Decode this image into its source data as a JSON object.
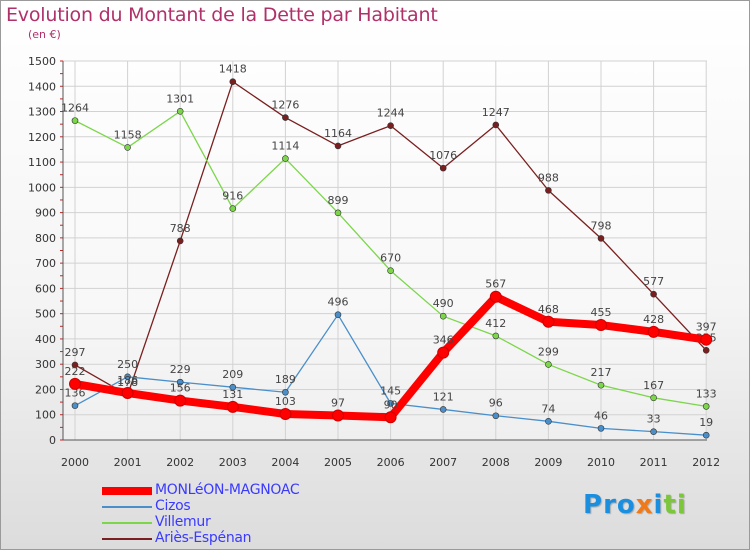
{
  "header": {
    "title": "Evolution du Montant de la Dette par Habitant",
    "subtitle": "(en €)"
  },
  "chart_data": {
    "type": "line",
    "title": "Evolution du Montant de la Dette par Habitant",
    "subtitle": "(en €)",
    "xlabel": "",
    "ylabel": "",
    "x": [
      "2000",
      "2001",
      "2002",
      "2003",
      "2004",
      "2005",
      "2006",
      "2007",
      "2008",
      "2009",
      "2010",
      "2011",
      "2012"
    ],
    "ylim": [
      0,
      1500
    ],
    "yticks": [
      0,
      100,
      200,
      300,
      400,
      500,
      600,
      700,
      800,
      900,
      1000,
      1100,
      1200,
      1300,
      1400,
      1500
    ],
    "grid": true,
    "legend_position": "bottom-left",
    "series": [
      {
        "name": "Ariès-Espénan",
        "color": "#7a1f1f",
        "values": [
          297,
          178,
          788,
          1418,
          1276,
          1164,
          1244,
          1076,
          1247,
          988,
          798,
          577,
          355
        ]
      },
      {
        "name": "Villemur",
        "color": "#7cd64a",
        "values": [
          1264,
          1158,
          1301,
          916,
          1114,
          899,
          670,
          490,
          412,
          299,
          217,
          167,
          133
        ]
      },
      {
        "name": "Cizos",
        "color": "#4a8fc9",
        "values": [
          136,
          250,
          229,
          209,
          189,
          496,
          145,
          121,
          96,
          74,
          46,
          33,
          19
        ]
      },
      {
        "name": "MONLéON-MAGNOAC",
        "color": "#ff0000",
        "values": [
          222,
          186,
          156,
          131,
          103,
          97,
          90,
          346,
          567,
          468,
          455,
          428,
          397
        ]
      }
    ]
  },
  "legend": [
    {
      "label": "MONLéON-MAGNOAC",
      "color": "#ff0000",
      "thickness": 8
    },
    {
      "label": "Cizos",
      "color": "#4a8fc9",
      "thickness": 2
    },
    {
      "label": "Villemur",
      "color": "#7cd64a",
      "thickness": 2
    },
    {
      "label": "Ariès-Espénan",
      "color": "#7a1f1f",
      "thickness": 2
    }
  ],
  "logo": {
    "letters": [
      {
        "ch": "P",
        "color": "#1a8fe0"
      },
      {
        "ch": "r",
        "color": "#1a8fe0"
      },
      {
        "ch": "o",
        "color": "#1a8fe0"
      },
      {
        "ch": "x",
        "color": "#f07a1a"
      },
      {
        "ch": "i",
        "color": "#1a8fe0"
      },
      {
        "ch": "t",
        "color": "#7cc63a"
      },
      {
        "ch": "i",
        "color": "#7cc63a"
      }
    ]
  }
}
